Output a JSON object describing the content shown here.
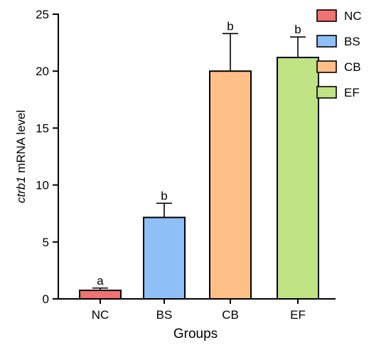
{
  "chart_data": {
    "type": "bar",
    "categories": [
      "NC",
      "BS",
      "CB",
      "EF"
    ],
    "values": [
      0.75,
      7.15,
      20.0,
      21.2
    ],
    "error_upper": [
      0.95,
      8.4,
      23.3,
      23.0
    ],
    "significance_labels": [
      "a",
      "b",
      "b",
      "b"
    ],
    "colors": [
      "#f07272",
      "#8fbff7",
      "#ffbf86",
      "#bfe283"
    ],
    "xlabel": "Groups",
    "ylabel_italic": "ctrb1",
    "ylabel_rest": " mRNA level",
    "ylim": [
      0,
      25
    ],
    "yticks": [
      "0",
      "5",
      "10",
      "15",
      "20",
      "25"
    ],
    "legend": {
      "position": "top-right",
      "entries": [
        "NC",
        "BS",
        "CB",
        "EF"
      ]
    },
    "grid": false
  }
}
